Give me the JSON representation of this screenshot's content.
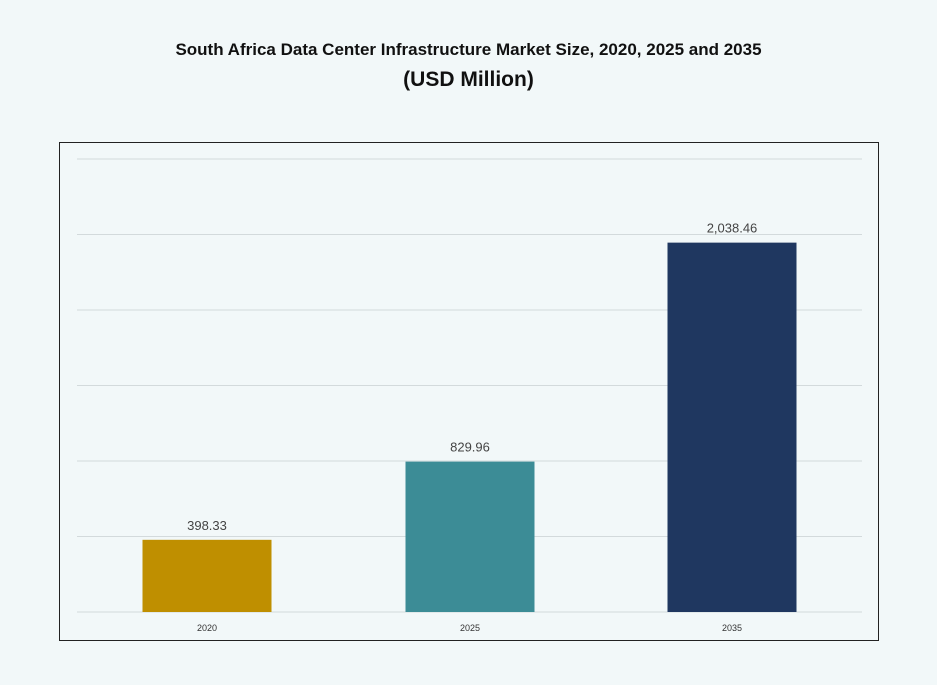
{
  "chart_data": {
    "type": "bar",
    "title": "South Africa Data Center Infrastructure  Market Size, 2020, 2025 and 2035",
    "subtitle": "(USD Million)",
    "categories": [
      "2020",
      "2025",
      "2035"
    ],
    "values": [
      398.33,
      829.96,
      2038.46
    ],
    "data_labels": [
      "398.33",
      "829.96",
      "2,038.46"
    ],
    "colors": [
      "#bf8f00",
      "#3c8c96",
      "#1f3760"
    ],
    "xlabel": "",
    "ylabel": "",
    "ylim": [
      0,
      2500
    ],
    "grid": true,
    "y_tick_labels_shown": false,
    "legend": "none"
  }
}
